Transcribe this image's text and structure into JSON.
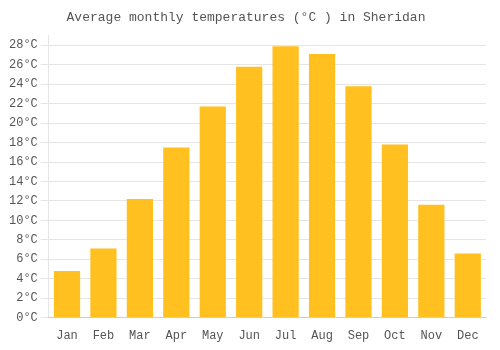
{
  "chart_data": {
    "type": "bar",
    "title": "Average monthly temperatures (°C ) in Sheridan",
    "categories": [
      "Jan",
      "Feb",
      "Mar",
      "Apr",
      "May",
      "Jun",
      "Jul",
      "Aug",
      "Sep",
      "Oct",
      "Nov",
      "Dec"
    ],
    "values": [
      4.8,
      7.1,
      12.2,
      17.5,
      21.7,
      25.8,
      27.9,
      27.1,
      23.8,
      17.8,
      11.6,
      6.6
    ],
    "color": "#FFC020",
    "ylim": [
      0,
      29
    ],
    "yticks": [
      {
        "value": 0,
        "label": "0°C"
      },
      {
        "value": 2,
        "label": "2°C"
      },
      {
        "value": 4,
        "label": "4°C"
      },
      {
        "value": 6,
        "label": "6°C"
      },
      {
        "value": 8,
        "label": "8°C"
      },
      {
        "value": 10,
        "label": "10°C"
      },
      {
        "value": 12,
        "label": "12°C"
      },
      {
        "value": 14,
        "label": "14°C"
      },
      {
        "value": 16,
        "label": "16°C"
      },
      {
        "value": 18,
        "label": "18°C"
      },
      {
        "value": 20,
        "label": "20°C"
      },
      {
        "value": 22,
        "label": "22°C"
      },
      {
        "value": 24,
        "label": "24°C"
      },
      {
        "value": 26,
        "label": "26°C"
      },
      {
        "value": 28,
        "label": "28°C"
      }
    ],
    "grid": true
  }
}
